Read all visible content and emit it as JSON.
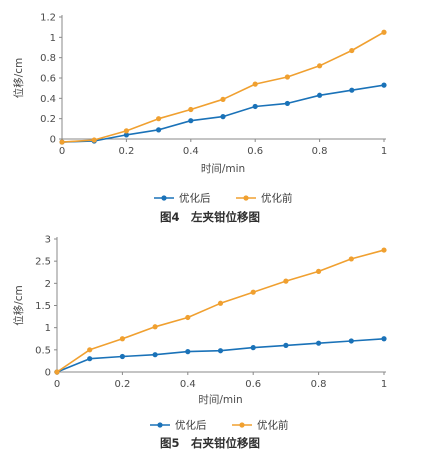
{
  "colors": {
    "before": "#f0a030",
    "after": "#1a72b8",
    "axis": "#888888"
  },
  "chart_data": [
    {
      "type": "line",
      "caption": "图4　左夹钳位移图",
      "xlabel": "时间/min",
      "ylabel": "位移/cm",
      "xlim": [
        0,
        1
      ],
      "ylim": [
        0,
        1.2
      ],
      "xticks": [
        "0",
        "0.2",
        "0.4",
        "0.6",
        "0.8",
        "1"
      ],
      "yticks": [
        "0",
        "0.2",
        "0.4",
        "0.6",
        "0.8",
        "1",
        "1.2"
      ],
      "legend_position": "bottom",
      "x": [
        0,
        0.1,
        0.2,
        0.3,
        0.4,
        0.5,
        0.6,
        0.7,
        0.8,
        0.9,
        1.0
      ],
      "series": [
        {
          "name": "优化后",
          "color": "#1a72b8",
          "values": [
            -0.03,
            -0.02,
            0.04,
            0.09,
            0.18,
            0.22,
            0.32,
            0.35,
            0.43,
            0.48,
            0.53
          ]
        },
        {
          "name": "优化前",
          "color": "#f0a030",
          "values": [
            -0.03,
            -0.01,
            0.08,
            0.2,
            0.29,
            0.39,
            0.54,
            0.61,
            0.72,
            0.87,
            1.05
          ]
        }
      ]
    },
    {
      "type": "line",
      "caption": "图5　右夹钳位移图",
      "xlabel": "时间/min",
      "ylabel": "位移/cm",
      "xlim": [
        0,
        1
      ],
      "ylim": [
        0,
        3
      ],
      "xticks": [
        "0",
        "0.2",
        "0.4",
        "0.6",
        "0.8",
        "1"
      ],
      "yticks": [
        "0",
        "0.5",
        "1",
        "1.5",
        "2",
        "2.5",
        "3"
      ],
      "legend_position": "bottom",
      "x": [
        0,
        0.1,
        0.2,
        0.3,
        0.4,
        0.5,
        0.6,
        0.7,
        0.8,
        0.9,
        1.0
      ],
      "series": [
        {
          "name": "优化后",
          "color": "#1a72b8",
          "values": [
            0,
            0.3,
            0.35,
            0.39,
            0.46,
            0.48,
            0.55,
            0.6,
            0.65,
            0.7,
            0.75
          ]
        },
        {
          "name": "优化前",
          "color": "#f0a030",
          "values": [
            0,
            0.5,
            0.75,
            1.02,
            1.23,
            1.55,
            1.8,
            2.05,
            2.27,
            2.55,
            2.75
          ]
        }
      ]
    }
  ]
}
